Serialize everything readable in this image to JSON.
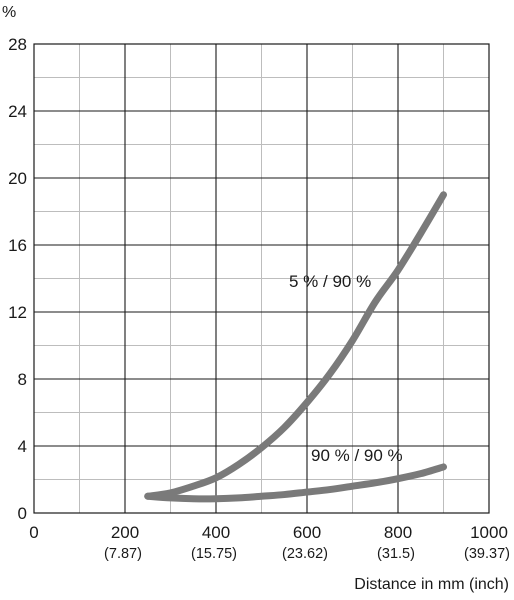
{
  "chart_data": {
    "type": "line",
    "ylabel": "%",
    "xlabel": "Distance in mm (inch)",
    "xlim": [
      0,
      1000
    ],
    "ylim": [
      0,
      28
    ],
    "grid": true,
    "x_ticks": [
      {
        "value": 0,
        "label": "0",
        "sublabel": ""
      },
      {
        "value": 200,
        "label": "200",
        "sublabel": "(7.87)"
      },
      {
        "value": 400,
        "label": "400",
        "sublabel": "(15.75)"
      },
      {
        "value": 600,
        "label": "600",
        "sublabel": "(23.62)"
      },
      {
        "value": 800,
        "label": "800",
        "sublabel": "(31.5)"
      },
      {
        "value": 1000,
        "label": "1000",
        "sublabel": "(39.37)"
      }
    ],
    "y_ticks": [
      {
        "value": 0,
        "label": "0"
      },
      {
        "value": 4,
        "label": "4"
      },
      {
        "value": 8,
        "label": "8"
      },
      {
        "value": 12,
        "label": "12"
      },
      {
        "value": 16,
        "label": "16"
      },
      {
        "value": 20,
        "label": "20"
      },
      {
        "value": 24,
        "label": "24"
      },
      {
        "value": 28,
        "label": "28"
      }
    ],
    "series": [
      {
        "name": "5 % / 90 %",
        "color": "#7a7a7a",
        "x": [
          250,
          300,
          350,
          400,
          450,
          500,
          550,
          600,
          650,
          700,
          750,
          800,
          850,
          900
        ],
        "y": [
          1.0,
          1.2,
          1.6,
          2.1,
          2.9,
          3.9,
          5.1,
          6.6,
          8.3,
          10.3,
          12.6,
          14.5,
          16.7,
          19.0
        ]
      },
      {
        "name": "90 % / 90 %",
        "color": "#7a7a7a",
        "x": [
          250,
          300,
          350,
          400,
          450,
          500,
          550,
          600,
          650,
          700,
          750,
          800,
          850,
          900
        ],
        "y": [
          1.0,
          0.9,
          0.85,
          0.85,
          0.9,
          1.0,
          1.1,
          1.25,
          1.4,
          1.6,
          1.8,
          2.05,
          2.35,
          2.75
        ]
      }
    ]
  }
}
